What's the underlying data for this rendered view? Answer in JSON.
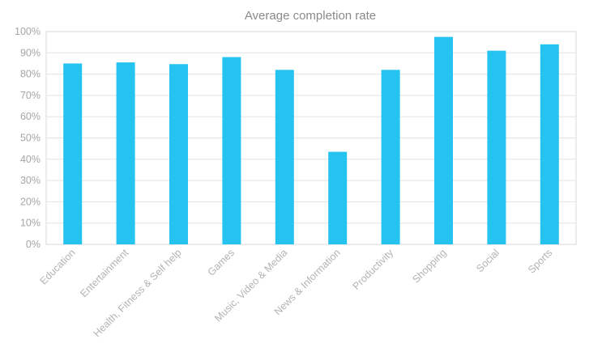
{
  "chart_data": {
    "type": "bar",
    "title": "Average completion rate",
    "categories": [
      "Education",
      "Entertainment",
      "Health, Fitness & Self help",
      "Games",
      "Music, Video & Media",
      "News & Information",
      "Productivity",
      "Shopping",
      "Social",
      "Sports"
    ],
    "values": [
      85,
      85.5,
      84.7,
      88,
      82,
      43.5,
      82,
      97.5,
      91,
      94
    ],
    "ylim": [
      0,
      100
    ],
    "yticks": [
      0,
      10,
      20,
      30,
      40,
      50,
      60,
      70,
      80,
      90,
      100
    ],
    "ytick_labels": [
      "0%",
      "10%",
      "20%",
      "30%",
      "40%",
      "50%",
      "60%",
      "70%",
      "80%",
      "90%",
      "100%"
    ],
    "bar_color": "#25c3ef",
    "grid": true,
    "legend": "none"
  }
}
